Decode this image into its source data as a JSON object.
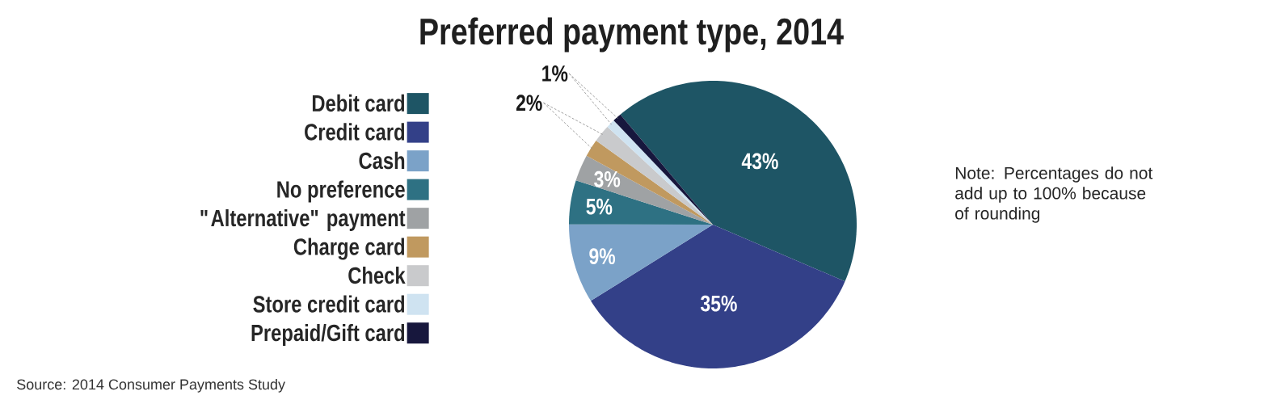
{
  "chart_data": {
    "type": "pie",
    "title": "Preferred payment type, 2014",
    "categories": [
      "Debit card",
      "Credit card",
      "Cash",
      "No preference",
      "\"Alternative\" payment",
      "Charge card",
      "Check",
      "Store credit card",
      "Prepaid/Gift card"
    ],
    "values": [
      43,
      35,
      9,
      5,
      3,
      2,
      2,
      1,
      1
    ],
    "colors": [
      "#1e5565",
      "#334088",
      "#7ba2c8",
      "#2e7183",
      "#9fa2a4",
      "#c0995f",
      "#c9cacc",
      "#cfe3f1",
      "#17173d"
    ],
    "value_labels": [
      "43%",
      "35%",
      "9%",
      "5%",
      "3%",
      "2%",
      null,
      "1%",
      null
    ],
    "legend": "left",
    "annotations": [
      "Note: Percentages do not add up to 100% because of rounding",
      "Source: 2014 Consumer Payments Study"
    ]
  }
}
